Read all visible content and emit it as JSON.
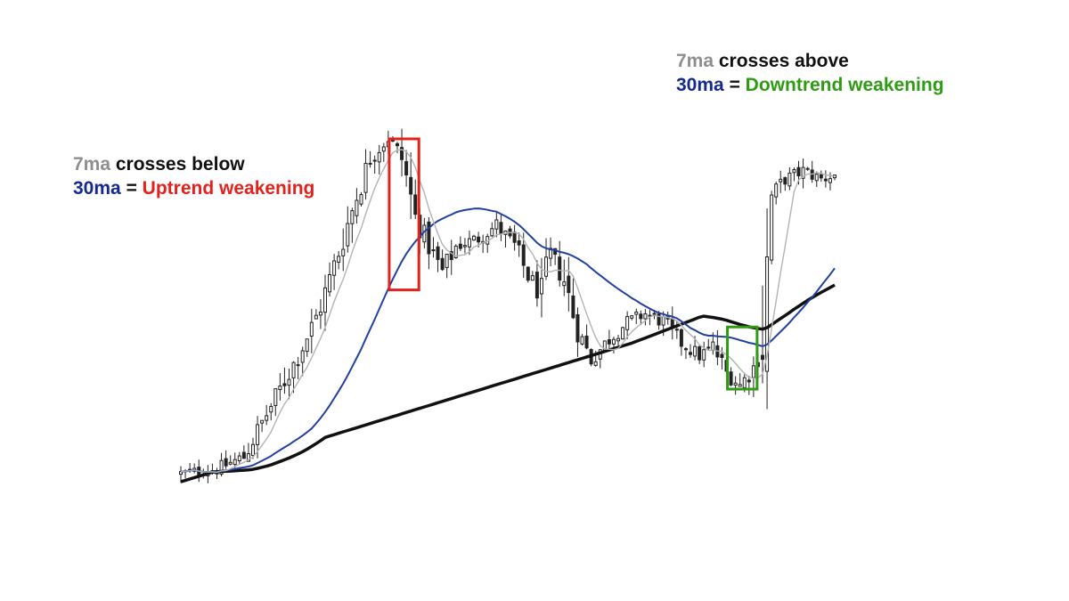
{
  "colors": {
    "background": "#ffffff",
    "candle": "#222222",
    "ma7": "#b3b3b3",
    "ma30": "#2140a0",
    "ma_long": "#111111",
    "label_gray": "#8e8e8e",
    "label_navy": "#142a8e",
    "label_red": "#e3221b",
    "label_green": "#2e9b13"
  },
  "annotations": {
    "left": {
      "ma7_label": "7ma",
      "action": "crosses below",
      "ma30_label": "30ma",
      "equals": "=",
      "meaning": "Uptrend weakening"
    },
    "right": {
      "ma7_label": "7ma",
      "action": "crosses above",
      "ma30_label": "30ma",
      "equals": "=",
      "meaning": "Downtrend weakening"
    }
  },
  "chart_data": {
    "type": "candlestick",
    "title": "",
    "xlabel": "",
    "ylabel": "",
    "grid": false,
    "legend": "none",
    "ylim": [
      0,
      100
    ],
    "price_anchors": [
      [
        0,
        6
      ],
      [
        8,
        7
      ],
      [
        14,
        10
      ],
      [
        18,
        18
      ],
      [
        22,
        26
      ],
      [
        26,
        34
      ],
      [
        30,
        43
      ],
      [
        33,
        52
      ],
      [
        36,
        62
      ],
      [
        39,
        72
      ],
      [
        42,
        81
      ],
      [
        46,
        86
      ],
      [
        49,
        81
      ],
      [
        52,
        67
      ],
      [
        55,
        60
      ],
      [
        58,
        54
      ],
      [
        61,
        60
      ],
      [
        66,
        62
      ],
      [
        70,
        65
      ],
      [
        74,
        60
      ],
      [
        77,
        53
      ],
      [
        80,
        48
      ],
      [
        82,
        58
      ],
      [
        85,
        52
      ],
      [
        88,
        40
      ],
      [
        91,
        33
      ],
      [
        95,
        38
      ],
      [
        99,
        42
      ],
      [
        103,
        44
      ],
      [
        107,
        42
      ],
      [
        111,
        37
      ],
      [
        115,
        34
      ],
      [
        118,
        36
      ],
      [
        121,
        30
      ],
      [
        124,
        27
      ],
      [
        127,
        31
      ],
      [
        129,
        38
      ],
      [
        131,
        72
      ],
      [
        134,
        76
      ],
      [
        138,
        78
      ],
      [
        142,
        76
      ],
      [
        145,
        77
      ]
    ],
    "series": [
      {
        "type": "candlestick",
        "count": 146
      },
      {
        "type": "line",
        "period": 7
      },
      {
        "type": "line",
        "period": 30
      },
      {
        "type": "line",
        "period": "long"
      }
    ],
    "highlights": [
      {
        "event": "7ma crosses below 30ma",
        "color": "red",
        "index_range": [
          47,
          52
        ]
      },
      {
        "event": "7ma crosses above 30ma",
        "color": "green",
        "index_range": [
          122,
          127
        ]
      }
    ]
  }
}
